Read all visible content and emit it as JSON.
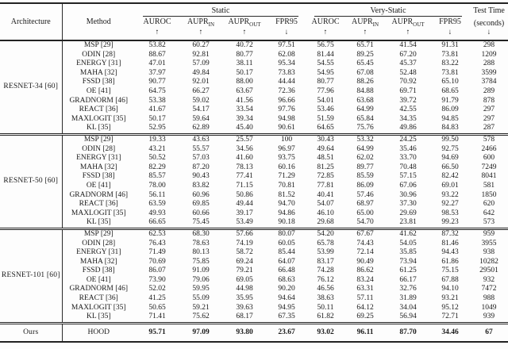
{
  "colors": {
    "background": "#fdfdfd",
    "text": "#1a1a1a",
    "rule": "#222222"
  },
  "table": {
    "header": {
      "architecture": "Architecture",
      "method": "Method",
      "groups": [
        {
          "label": "Static"
        },
        {
          "label": "Very-Static"
        }
      ],
      "columns": [
        {
          "name": "AUROC",
          "sub": "",
          "arrow": "↑"
        },
        {
          "name": "AUPR",
          "sub": "IN",
          "arrow": "↑"
        },
        {
          "name": "AUPR",
          "sub": "OUT",
          "arrow": "↑"
        },
        {
          "name": "FPR95",
          "sub": "",
          "arrow": "↓"
        }
      ],
      "test_time": {
        "line1": "Test Time",
        "line2": "(seconds)",
        "arrow": "↓"
      }
    },
    "blocks": [
      {
        "architecture": "RESNET-34 [60]",
        "rows": [
          {
            "method": "MSP [29]",
            "values": [
              "53.82",
              "60.27",
              "40.72",
              "97.51",
              "56.75",
              "65.71",
              "41.54",
              "91.31",
              "298"
            ]
          },
          {
            "method": "ODIN [28]",
            "values": [
              "88.67",
              "92.81",
              "80.77",
              "62.08",
              "81.44",
              "89.25",
              "67.20",
              "73.81",
              "1209"
            ]
          },
          {
            "method": "ENERGY [31]",
            "values": [
              "47.01",
              "57.09",
              "38.11",
              "95.34",
              "54.55",
              "65.45",
              "45.37",
              "83.22",
              "288"
            ]
          },
          {
            "method": "MAHA [32]",
            "values": [
              "37.97",
              "49.84",
              "50.17",
              "73.83",
              "54.95",
              "67.08",
              "52.48",
              "73.81",
              "3599"
            ]
          },
          {
            "method": "FSSD [38]",
            "values": [
              "90.77",
              "92.01",
              "88.00",
              "44.44",
              "80.77",
              "88.26",
              "70.92",
              "65.10",
              "3784"
            ]
          },
          {
            "method": "OE [41]",
            "values": [
              "64.75",
              "66.27",
              "63.67",
              "72.36",
              "77.96",
              "84.88",
              "69.71",
              "68.65",
              "289"
            ]
          },
          {
            "method": "GRADNORM [46]",
            "values": [
              "53.38",
              "59.02",
              "41.56",
              "96.66",
              "54.01",
              "63.68",
              "39.72",
              "91.79",
              "878"
            ]
          },
          {
            "method": "REACT [36]",
            "values": [
              "41.67",
              "54.17",
              "33.54",
              "97.76",
              "53.46",
              "64.99",
              "42.55",
              "86.09",
              "297"
            ]
          },
          {
            "method": "MAXLOGIT [35]",
            "values": [
              "50.17",
              "59.64",
              "39.34",
              "94.98",
              "51.59",
              "65.84",
              "34.35",
              "94.85",
              "297"
            ]
          },
          {
            "method": "KL [35]",
            "values": [
              "52.95",
              "62.89",
              "45.40",
              "90.61",
              "64.65",
              "75.76",
              "49.86",
              "84.83",
              "287"
            ]
          }
        ]
      },
      {
        "architecture": "RESNET-50 [60]",
        "rows": [
          {
            "method": "MSP [29]",
            "values": [
              "19.33",
              "43.63",
              "25.57",
              "100",
              "30.43",
              "53.32",
              "24.25",
              "99.50",
              "578"
            ]
          },
          {
            "method": "ODIN [28]",
            "values": [
              "43.21",
              "55.57",
              "34.56",
              "96.97",
              "49.64",
              "64.99",
              "35.46",
              "92.75",
              "2466"
            ]
          },
          {
            "method": "ENERGY [31]",
            "values": [
              "50.52",
              "57.03",
              "41.60",
              "93.75",
              "48.51",
              "62.02",
              "33.70",
              "94.69",
              "600"
            ]
          },
          {
            "method": "MAHA [32]",
            "values": [
              "82.29",
              "87.20",
              "78.13",
              "60.16",
              "81.25",
              "89.77",
              "70.48",
              "66.50",
              "7249"
            ]
          },
          {
            "method": "FSSD [38]",
            "values": [
              "85.57",
              "90.43",
              "77.41",
              "71.29",
              "72.85",
              "85.59",
              "57.15",
              "82.42",
              "8041"
            ]
          },
          {
            "method": "OE [41]",
            "values": [
              "78.00",
              "83.82",
              "71.15",
              "70.81",
              "77.81",
              "86.09",
              "67.06",
              "69.01",
              "581"
            ]
          },
          {
            "method": "GRADNORM [46]",
            "values": [
              "56.11",
              "60.96",
              "50.86",
              "81.52",
              "40.41",
              "57.46",
              "30.96",
              "93.22",
              "1850"
            ]
          },
          {
            "method": "REACT [36]",
            "values": [
              "63.59",
              "69.85",
              "49.44",
              "94.70",
              "54.07",
              "68.97",
              "37.30",
              "92.27",
              "620"
            ]
          },
          {
            "method": "MAXLOGIT [35]",
            "values": [
              "49.93",
              "60.66",
              "39.17",
              "94.86",
              "46.10",
              "65.00",
              "29.69",
              "98.53",
              "642"
            ]
          },
          {
            "method": "KL [35]",
            "values": [
              "66.65",
              "75.45",
              "53.49",
              "90.18",
              "29.68",
              "54.70",
              "23.81",
              "99.23",
              "573"
            ]
          }
        ]
      },
      {
        "architecture": "RESNET-101 [60]",
        "rows": [
          {
            "method": "MSP [29]",
            "values": [
              "62.53",
              "68.30",
              "57.66",
              "80.07",
              "54.20",
              "67.67",
              "41.62",
              "87.32",
              "959"
            ]
          },
          {
            "method": "ODIN [28]",
            "values": [
              "76.43",
              "78.63",
              "74.19",
              "60.05",
              "65.78",
              "74.43",
              "54.05",
              "81.46",
              "3955"
            ]
          },
          {
            "method": "ENERGY [31]",
            "values": [
              "71.49",
              "80.13",
              "58.72",
              "85.44",
              "53.99",
              "72.14",
              "35.85",
              "94.43",
              "938"
            ]
          },
          {
            "method": "MAHA [32]",
            "values": [
              "70.69",
              "75.85",
              "69.24",
              "64.07",
              "83.17",
              "90.49",
              "73.94",
              "61.86",
              "10282"
            ]
          },
          {
            "method": "FSSD [38]",
            "values": [
              "86.07",
              "91.09",
              "79.21",
              "66.48",
              "74.28",
              "86.62",
              "61.25",
              "75.15",
              "29501"
            ]
          },
          {
            "method": "OE [41]",
            "values": [
              "73.90",
              "79.06",
              "69.05",
              "68.63",
              "76.12",
              "83.24",
              "66.17",
              "67.88",
              "932"
            ]
          },
          {
            "method": "GRADNORM [46]",
            "values": [
              "52.02",
              "59.95",
              "44.98",
              "90.20",
              "46.56",
              "63.31",
              "32.76",
              "94.10",
              "7472"
            ]
          },
          {
            "method": "REACT [36]",
            "values": [
              "41.25",
              "55.09",
              "35.95",
              "94.64",
              "38.63",
              "57.11",
              "31.89",
              "93.21",
              "988"
            ]
          },
          {
            "method": "MAXLOGIT [35]",
            "values": [
              "50.65",
              "59.21",
              "39.63",
              "94.95",
              "50.11",
              "64.12",
              "34.04",
              "95.12",
              "1049"
            ]
          },
          {
            "method": "KL [35]",
            "values": [
              "71.41",
              "75.62",
              "68.17",
              "67.35",
              "61.82",
              "69.25",
              "56.94",
              "72.71",
              "939"
            ]
          }
        ]
      }
    ],
    "ours": {
      "architecture": "Ours",
      "method": "HOOD",
      "values": [
        "95.71",
        "97.09",
        "93.80",
        "23.67",
        "93.02",
        "96.11",
        "87.70",
        "34.46",
        "67"
      ]
    }
  }
}
